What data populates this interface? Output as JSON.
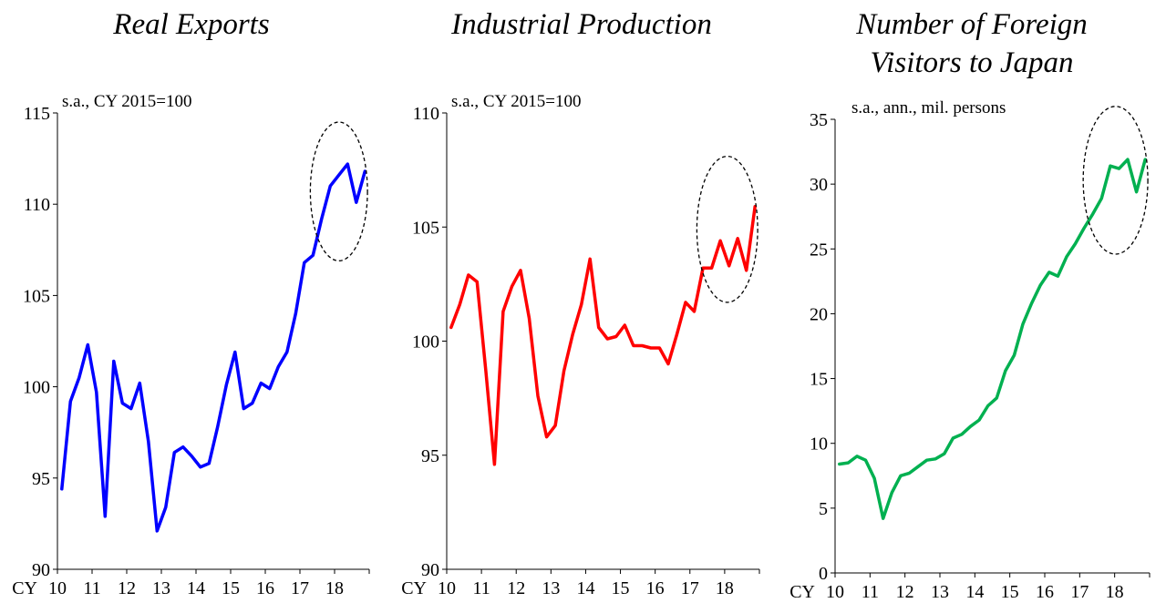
{
  "chart_data": [
    {
      "type": "line",
      "title": "Real Exports",
      "unit_note": "s.a., CY 2015=100",
      "x_label_prefix": "CY",
      "x_tick_labels": [
        "10",
        "11",
        "12",
        "13",
        "14",
        "15",
        "16",
        "17",
        "18"
      ],
      "x_start": 2010.0,
      "x_step": 0.25,
      "ylim": [
        90,
        115
      ],
      "y_ticks": [
        90,
        95,
        100,
        105,
        110,
        115
      ],
      "line_color": "#0000ff",
      "annotation": "dashed ellipse highlighting 2017-2018",
      "ellipse_x_range": [
        2017.3,
        2018.95
      ],
      "ellipse_y_range": [
        106.9,
        114.5
      ],
      "series": [
        {
          "values": [
            94.4,
            99.2,
            100.5,
            102.3,
            99.7,
            92.9,
            101.4,
            99.1,
            98.8,
            100.2,
            97.0,
            92.1,
            93.4,
            96.4,
            96.7,
            96.2,
            95.6,
            95.8,
            97.8,
            100.1,
            101.9,
            98.8,
            99.1,
            100.2,
            99.9,
            101.1,
            101.9,
            104.0,
            106.8,
            107.2,
            109.2,
            111.0,
            111.6,
            112.2,
            110.1,
            111.8
          ]
        }
      ]
    },
    {
      "type": "line",
      "title": "Industrial Production",
      "unit_note": "s.a., CY 2015=100",
      "x_label_prefix": "CY",
      "x_tick_labels": [
        "10",
        "11",
        "12",
        "13",
        "14",
        "15",
        "16",
        "17",
        "18"
      ],
      "x_start": 2010.0,
      "x_step": 0.25,
      "ylim": [
        90,
        110
      ],
      "y_ticks": [
        90,
        95,
        100,
        105,
        110
      ],
      "line_color": "#ff0000",
      "annotation": "dashed ellipse highlighting 2017-2018",
      "ellipse_x_range": [
        2017.2,
        2018.95
      ],
      "ellipse_y_range": [
        101.7,
        108.1
      ],
      "series": [
        {
          "values": [
            100.6,
            101.6,
            102.9,
            102.6,
            98.7,
            94.6,
            101.3,
            102.4,
            103.1,
            101.0,
            97.6,
            95.8,
            96.3,
            98.7,
            100.3,
            101.6,
            103.6,
            100.6,
            100.1,
            100.2,
            100.7,
            99.8,
            99.8,
            99.7,
            99.7,
            99.0,
            100.3,
            101.7,
            101.3,
            103.2,
            103.2,
            104.4,
            103.3,
            104.5,
            103.1,
            105.9
          ]
        }
      ]
    },
    {
      "type": "line",
      "title": "Number of Foreign Visitors to Japan",
      "title_lines": [
        "Number of Foreign",
        "Visitors to Japan"
      ],
      "unit_note": "s.a., ann., mil. persons",
      "x_label_prefix": "CY",
      "x_tick_labels": [
        "10",
        "11",
        "12",
        "13",
        "14",
        "15",
        "16",
        "17",
        "18"
      ],
      "x_start": 2010.0,
      "x_step": 0.25,
      "ylim": [
        0,
        35
      ],
      "y_ticks": [
        0,
        5,
        10,
        15,
        20,
        25,
        30,
        35
      ],
      "line_color": "#00b050",
      "annotation": "dashed ellipse highlighting 2017-2018",
      "ellipse_x_range": [
        2017.1,
        2018.95
      ],
      "ellipse_y_range": [
        24.6,
        36.0
      ],
      "series": [
        {
          "values": [
            8.4,
            8.5,
            9.0,
            8.7,
            7.3,
            4.2,
            6.2,
            7.5,
            7.7,
            8.2,
            8.7,
            8.8,
            9.2,
            10.4,
            10.7,
            11.3,
            11.8,
            12.9,
            13.5,
            15.6,
            16.8,
            19.2,
            20.8,
            22.2,
            23.2,
            22.9,
            24.4,
            25.4,
            26.6,
            27.7,
            28.9,
            31.4,
            31.2,
            31.9,
            29.4,
            31.9
          ]
        }
      ]
    }
  ]
}
